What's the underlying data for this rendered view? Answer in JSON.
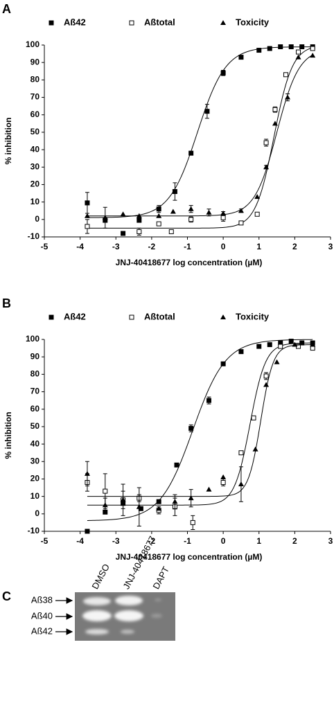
{
  "chart_data": [
    {
      "type": "scatter",
      "panel_label": "A",
      "xlabel": "JNJ-40418677 log concentration (µM)",
      "ylabel": "% inhibition",
      "xlim": [
        -5,
        3
      ],
      "xticks": [
        -5,
        -4,
        -3,
        -2,
        -1,
        0,
        1,
        2,
        3
      ],
      "ylim": [
        -10,
        100
      ],
      "yticks": [
        -10,
        0,
        10,
        20,
        30,
        40,
        50,
        60,
        70,
        80,
        90,
        100
      ],
      "series": [
        {
          "name": "Aß42",
          "color": "#000000",
          "marker": "square-filled",
          "x": [
            -3.8,
            -3.3,
            -2.8,
            -2.35,
            -1.8,
            -1.35,
            -0.9,
            -0.45,
            0,
            0.5,
            1,
            1.3,
            1.6,
            1.9,
            2.2,
            2.5
          ],
          "values": [
            9.5,
            -0.5,
            -8,
            -0.5,
            6,
            16,
            38,
            62,
            84,
            93,
            97,
            98,
            99,
            99,
            99,
            99
          ],
          "errors": [
            6,
            1,
            null,
            1,
            2,
            5,
            1,
            4,
            1.5,
            null,
            null,
            null,
            null,
            null,
            null,
            null
          ],
          "fit": {
            "bottom": 1,
            "top": 99,
            "log_ec50": -0.72,
            "hill": 1.1
          }
        },
        {
          "name": "Aßtotal",
          "color": "#000000",
          "marker": "square-open",
          "x": [
            -3.8,
            -2.35,
            -1.8,
            -1.45,
            -0.9,
            0,
            0.5,
            0.95,
            1.2,
            1.45,
            1.75,
            2.1,
            2.5
          ],
          "values": [
            -4,
            -7,
            -2.5,
            -7,
            0,
            1,
            -2,
            3,
            44,
            63,
            83,
            96,
            98
          ],
          "errors": [
            4,
            2,
            null,
            null,
            1.5,
            2,
            null,
            null,
            2,
            1.5,
            null,
            1,
            1
          ],
          "fit": {
            "bottom": -5,
            "top": 100,
            "log_ec50": 1.42,
            "hill": 1.7
          }
        },
        {
          "name": "Toxicity",
          "color": "#000000",
          "marker": "triangle-filled",
          "x": [
            -3.8,
            -3.3,
            -2.8,
            -2.35,
            -1.8,
            -1.4,
            -0.9,
            -0.4,
            0,
            0.5,
            0.95,
            1.2,
            1.45,
            1.8,
            2.1,
            2.5
          ],
          "values": [
            2,
            1,
            3,
            2,
            2,
            4.5,
            6,
            4,
            3.5,
            5,
            13,
            30,
            55,
            70,
            93,
            94
          ],
          "errors": [
            null,
            6,
            null,
            null,
            null,
            null,
            2,
            2,
            1,
            1,
            null,
            1,
            null,
            2,
            null,
            null
          ],
          "fit": {
            "bottom": 2,
            "top": 98,
            "log_ec50": 1.5,
            "hill": 1.4
          }
        }
      ]
    },
    {
      "type": "scatter",
      "panel_label": "B",
      "xlabel": "JNJ-40418677 log concentration (µM)",
      "ylabel": "% inhibition",
      "xlim": [
        -5,
        3
      ],
      "xticks": [
        -5,
        -4,
        -3,
        -2,
        -1,
        0,
        1,
        2,
        3
      ],
      "ylim": [
        -10,
        100
      ],
      "yticks": [
        -10,
        0,
        10,
        20,
        30,
        40,
        50,
        60,
        70,
        80,
        90,
        100
      ],
      "series": [
        {
          "name": "Aß42",
          "color": "#000000",
          "marker": "square-filled",
          "x": [
            -3.8,
            -3.3,
            -2.8,
            -2.3,
            -1.8,
            -1.3,
            -0.9,
            -0.4,
            0,
            0.5,
            1,
            1.3,
            1.6,
            1.9,
            2.2,
            2.5
          ],
          "values": [
            -10,
            1,
            6,
            3,
            7,
            28,
            49,
            65,
            86,
            93,
            96,
            97,
            98,
            99,
            98,
            98
          ],
          "errors": [
            null,
            null,
            null,
            null,
            null,
            null,
            2,
            2,
            null,
            null,
            null,
            null,
            null,
            null,
            null,
            null
          ],
          "fit": {
            "bottom": -4,
            "top": 100,
            "log_ec50": -0.85,
            "hill": 0.95
          }
        },
        {
          "name": "Aßtotal",
          "color": "#000000",
          "marker": "square-open",
          "x": [
            -3.8,
            -3.3,
            -2.8,
            -2.35,
            -1.8,
            -1.35,
            -0.85,
            0,
            0.5,
            0.85,
            1.2,
            1.6,
            2.1,
            2.5
          ],
          "values": [
            18,
            13,
            8,
            9,
            2,
            4,
            -5,
            18,
            35,
            55,
            79,
            96,
            96,
            95
          ],
          "errors": [
            5,
            10,
            9,
            2,
            2,
            5,
            4,
            2,
            null,
            null,
            2,
            1,
            1,
            1
          ],
          "fit": {
            "bottom": 5,
            "top": 98,
            "log_ec50": 0.75,
            "hill": 2
          }
        },
        {
          "name": "Toxicity",
          "color": "#000000",
          "marker": "triangle-filled",
          "x": [
            -3.8,
            -3.3,
            -2.8,
            -2.35,
            -1.8,
            -1.35,
            -0.9,
            -0.4,
            0,
            0.5,
            0.9,
            1.2,
            1.5,
            2,
            2.5
          ],
          "values": [
            23,
            5,
            8,
            4,
            3,
            7,
            9,
            14,
            21,
            17,
            37,
            74,
            87,
            97,
            97
          ],
          "errors": [
            7,
            4,
            5,
            11,
            null,
            4,
            5,
            null,
            null,
            10,
            null,
            null,
            null,
            null,
            null
          ],
          "fit": {
            "bottom": 10,
            "top": 97,
            "log_ec50": 1.05,
            "hill": 2.5
          }
        }
      ]
    }
  ],
  "gel": {
    "panel_label": "C",
    "lanes": [
      "DMSO",
      "JNJ-40418677",
      "DAPT"
    ],
    "bands": [
      "Aß38",
      "Aß40",
      "Aß42"
    ]
  }
}
